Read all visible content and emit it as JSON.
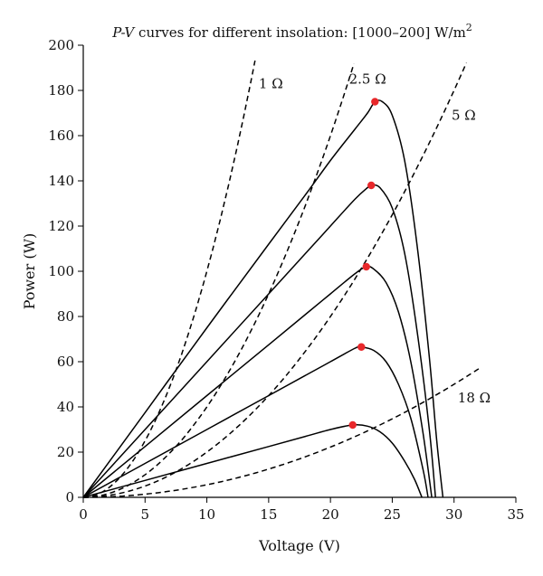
{
  "chart_data": {
    "type": "line",
    "title_italic": "P-V",
    "title_text": " curves for different insolation: [1000–200] W/m",
    "title_sup": "2",
    "xlabel": "Voltage (V)",
    "ylabel": "Power (W)",
    "xlim": [
      0,
      35
    ],
    "ylim": [
      0,
      200
    ],
    "xticks": [
      0,
      5,
      10,
      15,
      20,
      25,
      30,
      35
    ],
    "yticks": [
      0,
      20,
      40,
      60,
      80,
      100,
      120,
      140,
      160,
      180,
      200
    ],
    "grid": false,
    "mpp_color": "#e8282b",
    "pv_curves": [
      {
        "x": [
          0,
          5,
          10,
          15,
          18,
          20,
          22,
          23,
          23.6,
          24.2,
          25,
          26,
          27,
          28,
          28.6,
          29.1
        ],
        "y": [
          0,
          37.5,
          75,
          112,
          134,
          149,
          163,
          170,
          175,
          175,
          169,
          149,
          112,
          62,
          25,
          0
        ],
        "mpp": [
          23.6,
          175
        ]
      },
      {
        "x": [
          0,
          5,
          10,
          15,
          18,
          20,
          22,
          23,
          23.3,
          24,
          25,
          26,
          27,
          28,
          28.5
        ],
        "y": [
          0,
          30,
          60,
          90,
          108,
          120,
          132,
          137,
          138,
          137,
          128,
          108,
          74,
          30,
          0
        ],
        "mpp": [
          23.3,
          138
        ]
      },
      {
        "x": [
          0,
          5,
          10,
          15,
          18,
          20,
          22,
          22.9,
          23.5,
          24.5,
          25.5,
          26.5,
          27.5,
          28.2
        ],
        "y": [
          0,
          22.5,
          45,
          67.5,
          81,
          90,
          99,
          102,
          101,
          95,
          82,
          60,
          28,
          0
        ],
        "mpp": [
          22.9,
          102
        ]
      },
      {
        "x": [
          0,
          5,
          10,
          15,
          18,
          20,
          22,
          22.5,
          23.5,
          24.5,
          25.5,
          26.5,
          27.5,
          27.9
        ],
        "y": [
          0,
          15,
          30,
          45,
          54,
          60,
          66,
          66.5,
          65,
          60,
          50,
          35,
          12,
          0
        ],
        "mpp": [
          22.5,
          66.5
        ]
      },
      {
        "x": [
          0,
          5,
          10,
          15,
          18,
          20,
          21.8,
          23,
          24,
          25,
          26,
          26.8,
          27.4
        ],
        "y": [
          0,
          7.5,
          15,
          22.5,
          27,
          30,
          32,
          31.5,
          29,
          24,
          16,
          8,
          0
        ],
        "mpp": [
          21.8,
          32
        ]
      }
    ],
    "load_lines": [
      {
        "label": "1 Ω",
        "ohms": 1,
        "vmax": 13.9,
        "label_at": [
          14.2,
          181
        ]
      },
      {
        "label": "2.5 Ω",
        "ohms": 2.5,
        "vmax": 21.9,
        "label_at": [
          21.5,
          183
        ]
      },
      {
        "label": "5 Ω",
        "ohms": 5,
        "vmax": 31,
        "label_at": [
          29.8,
          167
        ]
      },
      {
        "label": "18 Ω",
        "ohms": 18,
        "vmax": 32,
        "label_at": [
          30.3,
          42
        ]
      }
    ]
  }
}
